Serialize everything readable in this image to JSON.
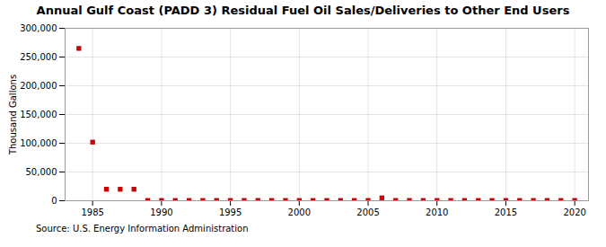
{
  "chart_data": {
    "type": "scatter",
    "title": "Annual Gulf Coast (PADD 3) Residual Fuel Oil Sales/Deliveries to Other End Users",
    "ylabel": "Thousand Gallons",
    "source": "Source: U.S. Energy Information Administration",
    "x": [
      1984,
      1985,
      1986,
      1987,
      1988,
      1989,
      1990,
      1991,
      1992,
      1993,
      1994,
      1995,
      1996,
      1997,
      1998,
      1999,
      2000,
      2001,
      2002,
      2003,
      2004,
      2005,
      2006,
      2007,
      2008,
      2009,
      2010,
      2011,
      2012,
      2013,
      2014,
      2015,
      2016,
      2017,
      2018,
      2019,
      2020
    ],
    "values": [
      265000,
      102000,
      20000,
      20000,
      20000,
      500,
      500,
      500,
      500,
      500,
      500,
      500,
      500,
      500,
      500,
      500,
      500,
      500,
      500,
      500,
      500,
      500,
      5000,
      500,
      500,
      500,
      500,
      500,
      500,
      500,
      500,
      500,
      500,
      500,
      500,
      500,
      500
    ],
    "color": "#cc0000",
    "marker": "square",
    "xlim": [
      1983,
      2021
    ],
    "xticks": [
      1985,
      1990,
      1995,
      2000,
      2005,
      2010,
      2015,
      2020
    ],
    "ylim": [
      0,
      300000
    ],
    "yticks": [
      0,
      {
        "value": 50000,
        "label": "50,000"
      },
      {
        "value": 100000,
        "label": "100,000"
      },
      {
        "value": 150000,
        "label": "150,000"
      },
      {
        "value": 200000,
        "label": "200,000"
      },
      {
        "value": 250000,
        "label": "250,000"
      },
      {
        "value": 300000,
        "label": "300,000"
      }
    ],
    "grid": true
  }
}
